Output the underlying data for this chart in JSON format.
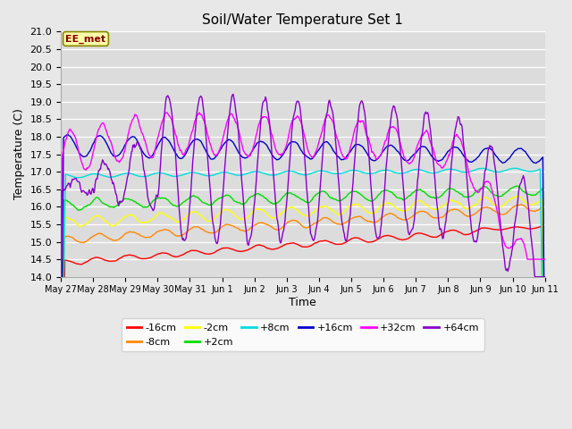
{
  "title": "Soil/Water Temperature Set 1",
  "xlabel": "Time",
  "ylabel": "Temperature (C)",
  "ylim": [
    14.0,
    21.0
  ],
  "yticks": [
    14.0,
    14.5,
    15.0,
    15.5,
    16.0,
    16.5,
    17.0,
    17.5,
    18.0,
    18.5,
    19.0,
    19.5,
    20.0,
    20.5,
    21.0
  ],
  "xtick_labels": [
    "May 27",
    "May 28",
    "May 29",
    "May 30",
    "May 31",
    "Jun 1",
    "Jun 2",
    "Jun 3",
    "Jun 4",
    "Jun 5",
    "Jun 6",
    "Jun 7",
    "Jun 8",
    "Jun 9",
    "Jun 10",
    "Jun 11"
  ],
  "series_labels": [
    "-16cm",
    "-8cm",
    "-2cm",
    "+2cm",
    "+8cm",
    "+16cm",
    "+32cm",
    "+64cm"
  ],
  "series_colors": [
    "#ff0000",
    "#ff8800",
    "#ffff00",
    "#00dd00",
    "#00dddd",
    "#0000cc",
    "#ff00ff",
    "#8800cc"
  ],
  "fig_bg_color": "#e8e8e8",
  "plot_bg_color": "#dcdcdc",
  "grid_color": "#ffffff",
  "annotation_text": "EE_met",
  "annotation_bg": "#ffffaa",
  "annotation_border": "#888800"
}
